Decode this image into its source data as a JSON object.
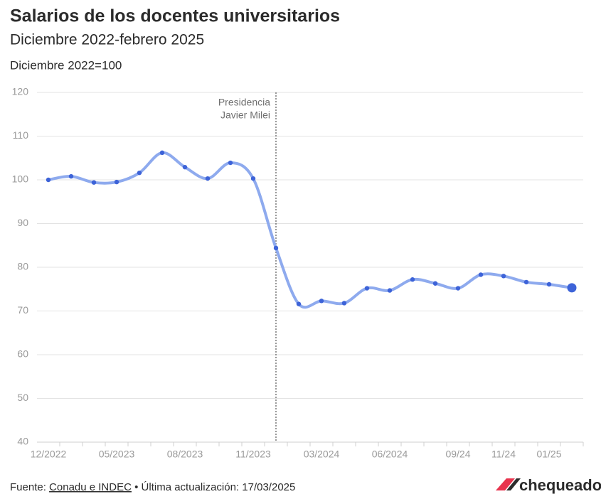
{
  "chart_data": {
    "type": "line",
    "title": "Salarios de los docentes universitarios",
    "subtitle": "Diciembre 2022-febrero 2025",
    "y_label": "Diciembre 2022=100",
    "categories": [
      "12/2022",
      null,
      null,
      "05/2023",
      null,
      null,
      "08/2023",
      null,
      null,
      "11/2023",
      null,
      null,
      "03/2024",
      null,
      null,
      "06/2024",
      null,
      null,
      "09/24",
      null,
      "11/24",
      null,
      "01/25",
      null
    ],
    "series": [
      {
        "name": "Salarios",
        "color": "#8eaaee",
        "marker_color": "#3d63d8",
        "values": [
          100,
          100.8,
          99.4,
          99.5,
          101.6,
          106.2,
          102.9,
          100.3,
          103.9,
          100.3,
          84.4,
          71.6,
          72.3,
          71.8,
          75.2,
          74.7,
          77.2,
          76.3,
          75.2,
          78.3,
          78.0,
          76.6,
          76.1,
          75.3
        ]
      }
    ],
    "ylim": [
      40,
      120
    ],
    "yticks": [
      40,
      50,
      60,
      70,
      80,
      90,
      100,
      110,
      120
    ],
    "grid": true,
    "annotation": [
      "Presidencia",
      "Javier Milei"
    ]
  },
  "footer": {
    "source_label": "Fuente:",
    "source": "Conadu e INDEC",
    "updated": "• Última actualización: 17/03/2025",
    "logo": "chequeado"
  }
}
